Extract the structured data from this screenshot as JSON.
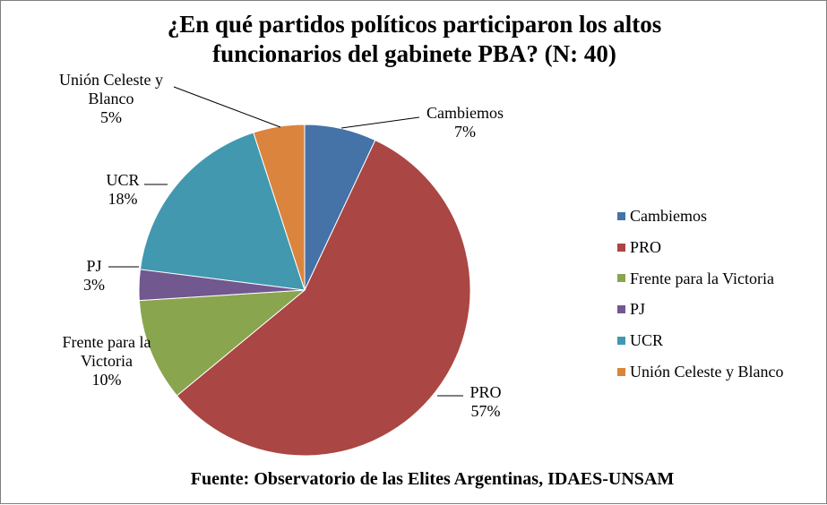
{
  "chart_data": {
    "type": "pie",
    "title_lines": [
      "¿En qué partidos políticos participaron  los altos",
      "funcionarios  del gabinete PBA? (N: 40)"
    ],
    "footer": "Fuente: Observatorio de las Elites  Argentinas, IDAES-UNSAM",
    "legend_position": "right",
    "slices": [
      {
        "name": "Cambiemos",
        "value": 7,
        "percent_label": "7%",
        "color": "#4572a7",
        "label_lines": [
          "Cambiemos"
        ]
      },
      {
        "name": "PRO",
        "value": 57,
        "percent_label": "57%",
        "color": "#aa4643",
        "label_lines": [
          "PRO"
        ]
      },
      {
        "name": "Frente para la Victoria",
        "value": 10,
        "percent_label": "10%",
        "color": "#89a54e",
        "label_lines": [
          "Frente para la",
          "Victoria"
        ]
      },
      {
        "name": "PJ",
        "value": 3,
        "percent_label": "3%",
        "color": "#71588f",
        "label_lines": [
          "PJ"
        ]
      },
      {
        "name": "UCR",
        "value": 18,
        "percent_label": "18%",
        "color": "#4198af",
        "label_lines": [
          "UCR"
        ]
      },
      {
        "name": "Unión Celeste y Blanco",
        "value": 5,
        "percent_label": "5%",
        "color": "#db843d",
        "label_lines": [
          "Unión Celeste y",
          "Blanco"
        ]
      }
    ]
  }
}
